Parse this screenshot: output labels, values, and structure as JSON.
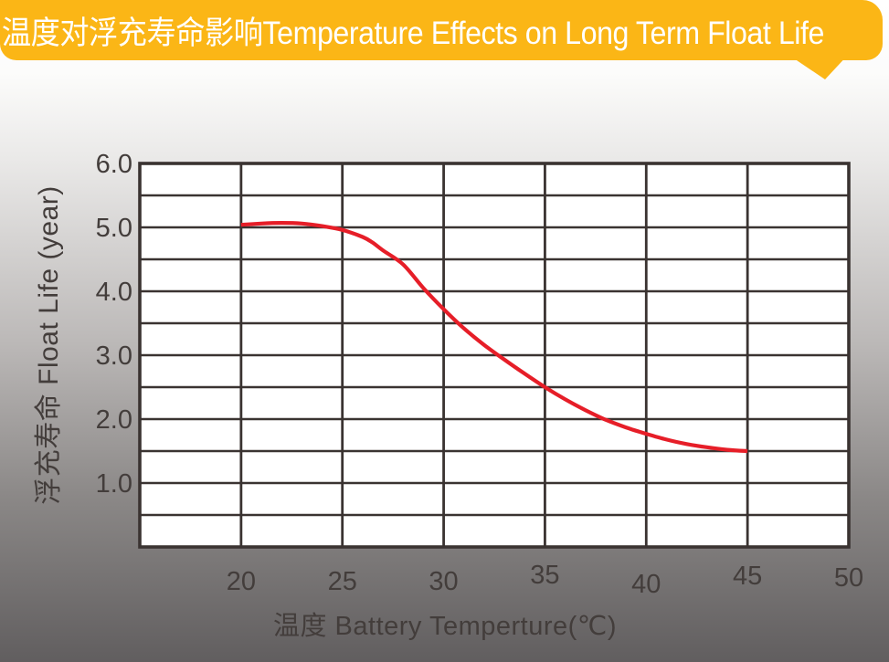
{
  "banner": {
    "title": "温度对浮充寿命影响Temperature Effects on Long Term Float Life",
    "bg_color": "#FBB616",
    "text_color": "#FFFFFF"
  },
  "chart_data": {
    "type": "line",
    "title": "温度对浮充寿命影响Temperature Effects on Long Term Float Life",
    "xlabel": "温度 Battery Temperture(℃)",
    "ylabel": "浮充寿命  Float Life (year)",
    "xlim": [
      15,
      50
    ],
    "ylim": [
      0,
      6
    ],
    "x_grid_step": 5,
    "y_grid_step": 0.5,
    "grid": true,
    "legend_position": "none",
    "xticks": [
      {
        "label": "20",
        "value": 20,
        "dy": 0
      },
      {
        "label": "25",
        "value": 25,
        "dy": 0
      },
      {
        "label": "30",
        "value": 30,
        "dy": 0
      },
      {
        "label": "35",
        "value": 35,
        "dy": -7
      },
      {
        "label": "40",
        "value": 40,
        "dy": 3
      },
      {
        "label": "45",
        "value": 45,
        "dy": -6
      },
      {
        "label": "50",
        "value": 50,
        "dy": -4
      }
    ],
    "yticks": [
      {
        "label": "6.0",
        "value": 6
      },
      {
        "label": "5.0",
        "value": 5
      },
      {
        "label": "4.0",
        "value": 4
      },
      {
        "label": "3.0",
        "value": 3
      },
      {
        "label": "2.0",
        "value": 2
      },
      {
        "label": "1.0",
        "value": 1
      }
    ],
    "series": [
      {
        "name": "float-life-vs-temperature",
        "color": "#E61E28",
        "points": [
          [
            20,
            5.04
          ],
          [
            21,
            5.06
          ],
          [
            22,
            5.07
          ],
          [
            23,
            5.06
          ],
          [
            24,
            5.02
          ],
          [
            25,
            4.96
          ],
          [
            26,
            4.85
          ],
          [
            26.5,
            4.76
          ],
          [
            27,
            4.64
          ],
          [
            28,
            4.42
          ],
          [
            29,
            4.05
          ],
          [
            30,
            3.72
          ],
          [
            31,
            3.42
          ],
          [
            32,
            3.16
          ],
          [
            33,
            2.93
          ],
          [
            34,
            2.71
          ],
          [
            35,
            2.5
          ],
          [
            36,
            2.31
          ],
          [
            37,
            2.14
          ],
          [
            38,
            1.99
          ],
          [
            39,
            1.87
          ],
          [
            40,
            1.77
          ],
          [
            41,
            1.68
          ],
          [
            42,
            1.61
          ],
          [
            43,
            1.56
          ],
          [
            44,
            1.52
          ],
          [
            45,
            1.5
          ]
        ]
      }
    ],
    "colors": {
      "grid": "#3A3331",
      "tick_text": "#433D3B",
      "plot_background": "#FFFFFF"
    }
  }
}
